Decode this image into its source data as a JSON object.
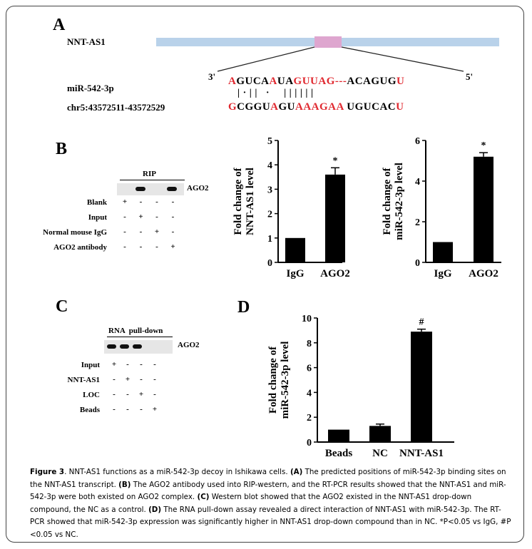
{
  "panelA": {
    "letter": "A",
    "gene_label": "NNT-AS1",
    "mirna_label": "miR-542-3p",
    "chr_label": "chr5:43572511-43572529",
    "three_prime": "3'",
    "five_prime": "5'",
    "mirna_seq": [
      {
        "t": "A",
        "c": "red"
      },
      {
        "t": "GUCA",
        "c": "blk"
      },
      {
        "t": "A",
        "c": "red"
      },
      {
        "t": "UA",
        "c": "blk"
      },
      {
        "t": "GUUAG",
        "c": "red"
      },
      {
        "t": "---",
        "c": "red"
      },
      {
        "t": "ACAGUG",
        "c": "blk"
      },
      {
        "t": "U",
        "c": "red"
      }
    ],
    "pairing": "| · | |   ·     | | | | | |",
    "target_seq": [
      {
        "t": "G",
        "c": "red"
      },
      {
        "t": "CGGU",
        "c": "blk"
      },
      {
        "t": "A",
        "c": "red"
      },
      {
        "t": "GU",
        "c": "blk"
      },
      {
        "t": "AAAGAA",
        "c": "red"
      },
      {
        "t": " UGUCAC",
        "c": "blk"
      },
      {
        "t": "U",
        "c": "red"
      }
    ],
    "colors": {
      "transcript": "#b9d2ea",
      "site": "#dea6cf"
    }
  },
  "panelB": {
    "letter": "B",
    "blot_header": "RIP",
    "blot_band_label": "AGO2",
    "rows": [
      {
        "label": "Blank",
        "signs": [
          "+",
          "-",
          "-",
          "-"
        ]
      },
      {
        "label": "Input",
        "signs": [
          "-",
          "+",
          "-",
          "-"
        ]
      },
      {
        "label": "Normal mouse IgG",
        "signs": [
          "-",
          "-",
          "+",
          "-"
        ]
      },
      {
        "label": "AGO2 antibody",
        "signs": [
          "-",
          "-",
          "-",
          "+"
        ]
      }
    ],
    "bands": [
      false,
      true,
      false,
      true
    ]
  },
  "panelC": {
    "letter": "C",
    "blot_header": "RNA  pull-down",
    "blot_band_label": "AGO2",
    "rows": [
      {
        "label": "Input",
        "signs": [
          "+",
          "-",
          "-",
          "-"
        ]
      },
      {
        "label": "NNT-AS1",
        "signs": [
          "-",
          "+",
          "-",
          "-"
        ]
      },
      {
        "label": "LOC",
        "signs": [
          "-",
          "-",
          "+",
          "-"
        ]
      },
      {
        "label": "Beads",
        "signs": [
          "-",
          "-",
          "-",
          "+"
        ]
      }
    ],
    "bands": [
      true,
      true,
      true,
      false
    ]
  },
  "panelD": {
    "letter": "D"
  },
  "chart_data": [
    {
      "type": "bar",
      "categories": [
        "IgG",
        "AGO2"
      ],
      "values": [
        1.0,
        3.6
      ],
      "errors": [
        0,
        0.28
      ],
      "ylabel": "Fold change of NNT-AS1 level",
      "ylabel_lines": [
        "Fold change of",
        "NNT-AS1 level"
      ],
      "ylim": [
        0,
        5
      ],
      "yticks": [
        0,
        1,
        2,
        3,
        4,
        5
      ],
      "annotations": [
        "",
        "*"
      ],
      "grid": false
    },
    {
      "type": "bar",
      "categories": [
        "IgG",
        "AGO2"
      ],
      "values": [
        1.0,
        5.2
      ],
      "errors": [
        0,
        0.2
      ],
      "ylabel": "Fold change of miR-542-3p level",
      "ylabel_lines": [
        "Fold change of",
        "miR-542-3p level"
      ],
      "ylim": [
        0,
        6
      ],
      "yticks": [
        0,
        2,
        4,
        6
      ],
      "annotations": [
        "",
        "*"
      ],
      "grid": false
    },
    {
      "type": "bar",
      "categories": [
        "Beads",
        "NC",
        "NNT-AS1"
      ],
      "values": [
        1.0,
        1.3,
        8.9
      ],
      "errors": [
        0,
        0.15,
        0.2
      ],
      "ylabel": "Fold change of miR-542-3p level",
      "ylabel_lines": [
        "Fold change of",
        "miR-542-3p level"
      ],
      "ylim": [
        0,
        10
      ],
      "yticks": [
        0,
        2,
        4,
        6,
        8,
        10
      ],
      "annotations": [
        "",
        "",
        "#"
      ],
      "grid": false
    }
  ],
  "caption": {
    "fig_label": "Figure 3",
    "parts": [
      {
        "b": false,
        "t": ". NNT-AS1 functions as a miR-542-3p decoy in Ishikawa cells. "
      },
      {
        "b": true,
        "t": "(A)"
      },
      {
        "b": false,
        "t": " The predicted positions of miR-542-3p binding sites on the NNT-AS1 transcript. "
      },
      {
        "b": true,
        "t": "(B)"
      },
      {
        "b": false,
        "t": " The AGO2 antibody used into RIP-western, and the RT-PCR results showed that the NNT-AS1 and miR-542-3p were both existed on AGO2 complex. "
      },
      {
        "b": true,
        "t": "(C)"
      },
      {
        "b": false,
        "t": " Western blot showed that the AGO2 existed in the NNT-AS1 drop-down compound, the NC as a control. "
      },
      {
        "b": true,
        "t": "(D)"
      },
      {
        "b": false,
        "t": " The RNA pull-down assay revealed a direct interaction of NNT-AS1 with miR-542-3p. The RT-PCR showed that miR-542-3p expression was significantly higher in NNT-AS1 drop-down compound than in NC. *P<0.05 vs IgG, #P <0.05 vs NC."
      }
    ]
  }
}
